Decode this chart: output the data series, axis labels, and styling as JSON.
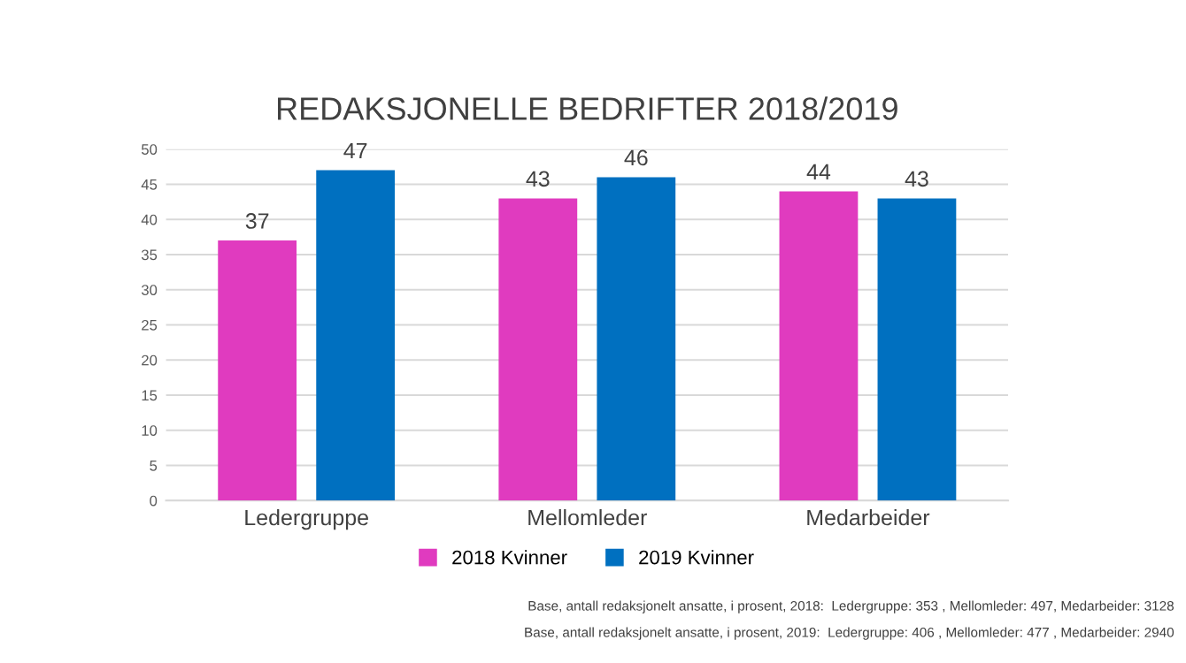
{
  "chart_data": {
    "type": "bar",
    "title": "REDAKSJONELLE BEDRIFTER 2018/2019",
    "categories": [
      "Ledergruppe",
      "Mellomleder",
      "Medarbeider"
    ],
    "series": [
      {
        "name": "2018 Kvinner",
        "color": "#e03bbf",
        "values": [
          37,
          43,
          44
        ]
      },
      {
        "name": "2019 Kvinner",
        "color": "#0070c0",
        "values": [
          47,
          46,
          43
        ]
      }
    ],
    "ylim": [
      0,
      50
    ],
    "yticks": [
      0,
      5,
      10,
      15,
      20,
      25,
      30,
      35,
      40,
      45,
      50
    ],
    "grid": "y",
    "legend": "bottom",
    "data_labels": true,
    "annotations": [
      "Base, antall redaksjonelt ansatte, i prosent, 2018:  Ledergruppe: 353 , Mellomleder: 497, Medarbeider: 3128",
      "Base, antall redaksjonelt ansatte, i prosent, 2019:  Ledergruppe: 406 , Mellomleder: 477 , Medarbeider: 2940"
    ]
  }
}
